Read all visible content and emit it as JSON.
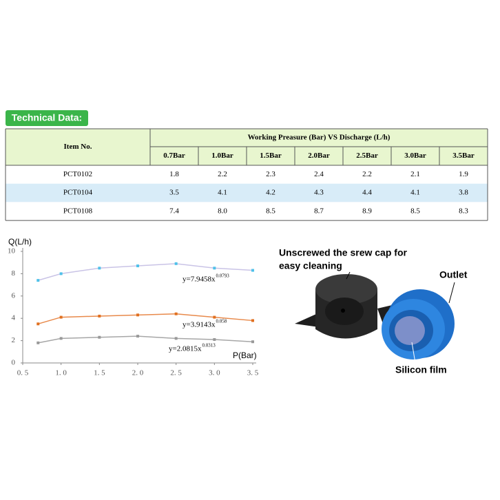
{
  "badge": "Technical Data:",
  "table": {
    "item_header": "Item No.",
    "group_header": "Working Preasure (Bar) VS Discharge (L/h)",
    "columns": [
      "0.7Bar",
      "1.0Bar",
      "1.5Bar",
      "2.0Bar",
      "2.5Bar",
      "3.0Bar",
      "3.5Bar"
    ],
    "rows": [
      [
        "PCT0102",
        "1.8",
        "2.2",
        "2.3",
        "2.4",
        "2.2",
        "2.1",
        "1.9"
      ],
      [
        "PCT0104",
        "3.5",
        "4.1",
        "4.2",
        "4.3",
        "4.4",
        "4.1",
        "3.8"
      ],
      [
        "PCT0108",
        "7.4",
        "8.0",
        "8.5",
        "8.7",
        "8.9",
        "8.5",
        "8.3"
      ]
    ]
  },
  "chart_data": {
    "type": "line",
    "y_label": "Q(L/h)",
    "x_label": "P(Bar)",
    "x": [
      0.7,
      1.0,
      1.5,
      2.0,
      2.5,
      3.0,
      3.5
    ],
    "xlim": [
      0.5,
      3.5
    ],
    "xticks": [
      {
        "value": 0.5,
        "label": "0. 5"
      },
      {
        "value": 1.0,
        "label": "1. 0"
      },
      {
        "value": 1.5,
        "label": "1. 5"
      },
      {
        "value": 2.0,
        "label": "2. 0"
      },
      {
        "value": 2.5,
        "label": "2. 5"
      },
      {
        "value": 3.0,
        "label": "3. 0"
      },
      {
        "value": 3.5,
        "label": "3. 5"
      }
    ],
    "ylim": [
      0,
      10
    ],
    "yticks": [
      0,
      2,
      4,
      6,
      8,
      10
    ],
    "series": [
      {
        "color": "#c9c3e6",
        "marker_color": "#4fc1e9",
        "values": [
          7.4,
          8.0,
          8.5,
          8.7,
          8.9,
          8.5,
          8.3
        ]
      },
      {
        "color": "#e8894a",
        "marker_color": "#e07020",
        "values": [
          3.5,
          4.1,
          4.2,
          4.3,
          4.4,
          4.1,
          3.8
        ]
      },
      {
        "color": "#a6a6a6",
        "marker_color": "#999999",
        "values": [
          1.8,
          2.2,
          2.3,
          2.4,
          2.2,
          2.1,
          1.9
        ]
      }
    ],
    "annotations": [
      {
        "text": "y=7.9458x",
        "superscript": "0.0793"
      },
      {
        "text": "y=3.9143x",
        "superscript": "0.058"
      },
      {
        "text": "y=2.0815x",
        "superscript": "0.0313"
      }
    ]
  },
  "photo": {
    "caption_top": [
      "Unscrewed the srew cap for",
      "easy cleaning"
    ],
    "outlet": "Outlet",
    "film": "Silicon film"
  }
}
